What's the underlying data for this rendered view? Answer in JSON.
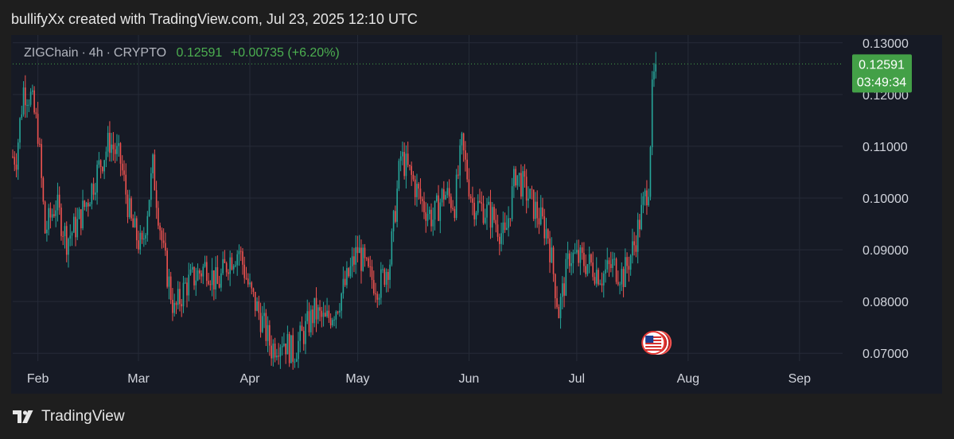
{
  "header": {
    "created_line": "bullifyXx created with TradingView.com, Jul 23, 2025 12:10 UTC"
  },
  "legend": {
    "symbol": "ZIGChain",
    "interval": "4h",
    "market": "CRYPTO",
    "price": "0.12591",
    "change": "+0.00735 (+6.20%)"
  },
  "price_tag": {
    "price": "0.12591",
    "countdown": "03:49:34"
  },
  "footer": {
    "brand": "TradingView",
    "logo_icon": "tradingview-logo-icon"
  },
  "colors": {
    "up": "#26a69a",
    "down": "#ef5350",
    "last_price": "#43a047",
    "background": "#161a25",
    "page": "#1e1e1e"
  },
  "event_icon": "us-flag-economic-event-icon",
  "chart_data": {
    "type": "candlestick",
    "title": "",
    "ylim": [
      0.0685,
      0.1315
    ],
    "y_ticks": [
      "0.07000",
      "0.08000",
      "0.09000",
      "0.10000",
      "0.11000",
      "0.12000",
      "0.13000"
    ],
    "x_ticks": [
      "Feb",
      "Mar",
      "Apr",
      "May",
      "Jun",
      "Jul",
      "Aug",
      "Sep"
    ],
    "last_price": 0.12591,
    "grid": true,
    "series": [
      {
        "points": [
          [
            "Jan 26",
            0.108
          ],
          [
            "Jan 28",
            0.121
          ],
          [
            "Jan 30",
            0.1195
          ],
          [
            "Feb 1",
            0.113
          ],
          [
            "Feb 3",
            0.0935
          ],
          [
            "Feb 6",
            0.099
          ],
          [
            "Feb 9",
            0.092
          ],
          [
            "Feb 12",
            0.095
          ],
          [
            "Feb 15",
            0.1
          ],
          [
            "Feb 18",
            0.106
          ],
          [
            "Feb 21",
            0.111
          ],
          [
            "Feb 24",
            0.107
          ],
          [
            "Feb 27",
            0.095
          ],
          [
            "Mar 2",
            0.09
          ],
          [
            "Mar 5",
            0.106
          ],
          [
            "Mar 8",
            0.089
          ],
          [
            "Mar 11",
            0.078
          ],
          [
            "Mar 14",
            0.083
          ],
          [
            "Mar 17",
            0.085
          ],
          [
            "Mar 20",
            0.087
          ],
          [
            "Mar 23",
            0.083
          ],
          [
            "Mar 26",
            0.088
          ],
          [
            "Mar 29",
            0.09
          ],
          [
            "Apr 1",
            0.082
          ],
          [
            "Apr 4",
            0.077
          ],
          [
            "Apr 7",
            0.071
          ],
          [
            "Apr 10",
            0.073
          ],
          [
            "Apr 13",
            0.07
          ],
          [
            "Apr 16",
            0.074
          ],
          [
            "Apr 19",
            0.078
          ],
          [
            "Apr 22",
            0.076
          ],
          [
            "Apr 25",
            0.079
          ],
          [
            "Apr 28",
            0.084
          ],
          [
            "May 1",
            0.09
          ],
          [
            "May 4",
            0.085
          ],
          [
            "May 7",
            0.083
          ],
          [
            "May 10",
            0.088
          ],
          [
            "May 13",
            0.108
          ],
          [
            "May 16",
            0.104
          ],
          [
            "May 19",
            0.099
          ],
          [
            "May 22",
            0.096
          ],
          [
            "May 25",
            0.101
          ],
          [
            "May 28",
            0.099
          ],
          [
            "May 30",
            0.11
          ],
          [
            "Jun 2",
            0.099
          ],
          [
            "Jun 5",
            0.098
          ],
          [
            "Jun 8",
            0.096
          ],
          [
            "Jun 11",
            0.092
          ],
          [
            "Jun 14",
            0.105
          ],
          [
            "Jun 17",
            0.101
          ],
          [
            "Jun 20",
            0.097
          ],
          [
            "Jun 23",
            0.093
          ],
          [
            "Jun 26",
            0.078
          ],
          [
            "Jun 29",
            0.089
          ],
          [
            "Jul 2",
            0.088
          ],
          [
            "Jul 5",
            0.087
          ],
          [
            "Jul 8",
            0.085
          ],
          [
            "Jul 11",
            0.087
          ],
          [
            "Jul 14",
            0.085
          ],
          [
            "Jul 17",
            0.091
          ],
          [
            "Jul 20",
            0.1
          ],
          [
            "Jul 21",
            0.103
          ],
          [
            "Jul 22",
            0.12
          ],
          [
            "Jul 23",
            0.12591
          ]
        ]
      }
    ]
  }
}
